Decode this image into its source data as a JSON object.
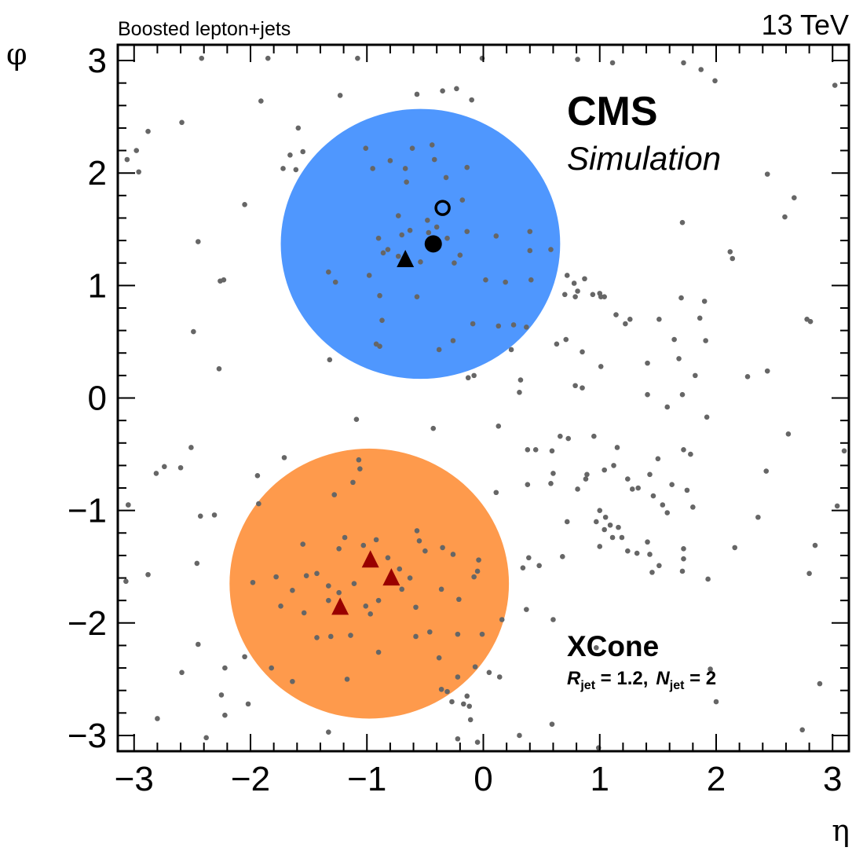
{
  "header": {
    "top_left": "Boosted lepton+jets",
    "top_right": "13 TeV"
  },
  "labels": {
    "cms": "CMS",
    "simulation": "Simulation",
    "algo": "XCone",
    "r_sym": "R",
    "jet_sub1": "jet",
    "r_val": " = 1.2,",
    "n_sym": "N",
    "jet_sub2": "jet",
    "n_val": " = 2"
  },
  "colors": {
    "jet1_fill": "#4f97fe",
    "jet2_fill": "#fe9a4c",
    "particle": "#666666",
    "marker": "#000000",
    "subjet_marker": "#990000"
  },
  "chart_data": {
    "type": "scatter",
    "title": "",
    "xlabel": "η",
    "ylabel": "φ",
    "xlim": [
      -3.14,
      3.14
    ],
    "ylim": [
      -3.14,
      3.14
    ],
    "xticks": [
      -3,
      -2,
      -1,
      0,
      1,
      2,
      3
    ],
    "yticks": [
      -3,
      -2,
      -1,
      0,
      1,
      2,
      3
    ],
    "xtick_labels": [
      "−3",
      "−2",
      "−1",
      "0",
      "1",
      "2",
      "3"
    ],
    "ytick_labels": [
      "−3",
      "−2",
      "−1",
      "0",
      "1",
      "2",
      "3"
    ],
    "jets": [
      {
        "eta_center": -0.54,
        "phi_center": 1.37,
        "radius": 1.2,
        "color": "#4f97fe"
      },
      {
        "eta_center": -0.98,
        "phi_center": -1.65,
        "radius": 1.2,
        "color": "#fe9a4c"
      }
    ],
    "markers": [
      {
        "eta": -0.43,
        "phi": 1.37,
        "symbol": "filled-circle",
        "color": "#000000"
      },
      {
        "eta": -0.35,
        "phi": 1.69,
        "symbol": "open-circle",
        "color": "#000000"
      },
      {
        "eta": -0.67,
        "phi": 1.24,
        "symbol": "triangle",
        "color": "#000000"
      },
      {
        "eta": -0.97,
        "phi": -1.43,
        "symbol": "triangle",
        "color": "#990000"
      },
      {
        "eta": -0.79,
        "phi": -1.59,
        "symbol": "triangle",
        "color": "#990000"
      },
      {
        "eta": -1.23,
        "phi": -1.85,
        "symbol": "triangle",
        "color": "#990000"
      }
    ],
    "particles": [
      [
        -2.42,
        3.02
      ],
      [
        -1.85,
        3.02
      ],
      [
        -1.08,
        3.02
      ],
      [
        -0.01,
        3.02
      ],
      [
        0.81,
        3.01
      ],
      [
        1.11,
        2.98
      ],
      [
        1.72,
        2.98
      ],
      [
        1.87,
        2.92
      ],
      [
        1.99,
        2.82
      ],
      [
        3.02,
        2.78
      ],
      [
        -0.35,
        2.73
      ],
      [
        -0.57,
        2.7
      ],
      [
        -1.23,
        2.69
      ],
      [
        -0.23,
        2.75
      ],
      [
        -0.1,
        2.65
      ],
      [
        -1.91,
        2.64
      ],
      [
        -2.59,
        2.45
      ],
      [
        -2.88,
        2.37
      ],
      [
        -1.59,
        2.4
      ],
      [
        -1.66,
        2.16
      ],
      [
        -2.98,
        2.2
      ],
      [
        -3.06,
        2.12
      ],
      [
        -2.96,
        2.01
      ],
      [
        -1.72,
        2.04
      ],
      [
        -1.61,
        2.03
      ],
      [
        -1.55,
        2.19
      ],
      [
        -0.61,
        2.22
      ],
      [
        -0.44,
        2.25
      ],
      [
        -0.42,
        2.12
      ],
      [
        -0.14,
        2.05
      ],
      [
        -0.18,
        1.76
      ],
      [
        -0.32,
        1.96
      ],
      [
        -0.8,
        2.11
      ],
      [
        -0.67,
        2.04
      ],
      [
        -0.66,
        1.92
      ],
      [
        -1.01,
        2.22
      ],
      [
        -0.95,
        2.04
      ],
      [
        2.44,
        1.99
      ],
      [
        2.67,
        1.78
      ],
      [
        2.59,
        1.61
      ],
      [
        -2.05,
        1.72
      ],
      [
        -0.73,
        1.62
      ],
      [
        -0.48,
        1.58
      ],
      [
        -0.47,
        1.47
      ],
      [
        -0.4,
        1.52
      ],
      [
        -0.31,
        1.42
      ],
      [
        -0.63,
        1.49
      ],
      [
        -0.7,
        1.45
      ],
      [
        -0.9,
        1.42
      ],
      [
        -0.14,
        1.48
      ],
      [
        0.11,
        1.44
      ],
      [
        0.4,
        1.48
      ],
      [
        0.4,
        1.31
      ],
      [
        1.71,
        1.56
      ],
      [
        2.14,
        1.24
      ],
      [
        2.12,
        1.3
      ],
      [
        -0.86,
        1.29
      ],
      [
        -0.73,
        1.26
      ],
      [
        -0.82,
        1.32
      ],
      [
        -0.54,
        1.21
      ],
      [
        -0.25,
        1.2
      ],
      [
        -0.2,
        1.27
      ],
      [
        0.58,
        1.32
      ],
      [
        -2.45,
        1.39
      ],
      [
        -2.23,
        1.05
      ],
      [
        -2.26,
        1.04
      ],
      [
        -1.33,
        1.12
      ],
      [
        -1.27,
        1.03
      ],
      [
        -0.98,
        1.09
      ],
      [
        0.02,
        1.05
      ],
      [
        0.19,
        1.03
      ],
      [
        0.41,
        1.05
      ],
      [
        0.72,
        1.09
      ],
      [
        0.78,
        1.02
      ],
      [
        0.87,
        1.06
      ],
      [
        0.81,
        0.95
      ],
      [
        0.94,
        0.92
      ],
      [
        1.0,
        0.93
      ],
      [
        0.79,
        0.9
      ],
      [
        0.7,
        0.92
      ],
      [
        1.01,
        0.9
      ],
      [
        1.04,
        0.9
      ],
      [
        1.7,
        0.89
      ],
      [
        1.9,
        0.86
      ],
      [
        -0.57,
        0.9
      ],
      [
        -0.89,
        0.91
      ],
      [
        1.14,
        0.74
      ],
      [
        1.26,
        0.7
      ],
      [
        1.22,
        0.66
      ],
      [
        1.51,
        0.7
      ],
      [
        1.86,
        0.71
      ],
      [
        2.78,
        0.7
      ],
      [
        2.81,
        0.68
      ],
      [
        -0.87,
        0.69
      ],
      [
        -0.09,
        0.66
      ],
      [
        0.13,
        0.64
      ],
      [
        0.26,
        0.65
      ],
      [
        0.37,
        0.63
      ],
      [
        0.63,
        0.48
      ],
      [
        0.71,
        0.52
      ],
      [
        1.64,
        0.52
      ],
      [
        1.91,
        0.51
      ],
      [
        -2.49,
        0.59
      ],
      [
        -0.26,
        0.51
      ],
      [
        -0.38,
        0.43
      ],
      [
        0.24,
        0.43
      ],
      [
        -0.89,
        0.46
      ],
      [
        -0.92,
        0.48
      ],
      [
        -1.32,
        0.34
      ],
      [
        0.85,
        0.41
      ],
      [
        1.01,
        0.28
      ],
      [
        1.41,
        0.31
      ],
      [
        1.68,
        0.35
      ],
      [
        1.82,
        0.2
      ],
      [
        2.44,
        0.24
      ],
      [
        2.27,
        0.19
      ],
      [
        -2.27,
        0.26
      ],
      [
        -0.08,
        0.2
      ],
      [
        -0.13,
        0.18
      ],
      [
        0.32,
        0.16
      ],
      [
        0.31,
        0.05
      ],
      [
        0.85,
        0.09
      ],
      [
        0.79,
        0.11
      ],
      [
        1.41,
        0.03
      ],
      [
        1.71,
        0.03
      ],
      [
        1.58,
        -0.08
      ],
      [
        1.92,
        -0.17
      ],
      [
        2.62,
        -0.32
      ],
      [
        3.1,
        -0.47
      ],
      [
        2.43,
        -0.65
      ],
      [
        -1.71,
        -0.53
      ],
      [
        -2.74,
        -0.61
      ],
      [
        -2.81,
        -0.67
      ],
      [
        -2.6,
        -0.62
      ],
      [
        -2.51,
        -0.44
      ],
      [
        -1.94,
        -0.69
      ],
      [
        -1.07,
        -0.55
      ],
      [
        -0.43,
        -0.27
      ],
      [
        -1.09,
        -0.19
      ],
      [
        0.13,
        -0.25
      ],
      [
        0.38,
        -0.46
      ],
      [
        0.45,
        -0.46
      ],
      [
        0.59,
        -0.47
      ],
      [
        0.6,
        -0.67
      ],
      [
        0.58,
        -0.76
      ],
      [
        0.81,
        -0.81
      ],
      [
        0.88,
        -0.72
      ],
      [
        0.89,
        -0.68
      ],
      [
        1.04,
        -0.64
      ],
      [
        1.12,
        -0.6
      ],
      [
        1.24,
        -0.72
      ],
      [
        1.28,
        -0.81
      ],
      [
        1.33,
        -0.8
      ],
      [
        1.43,
        -0.68
      ],
      [
        1.5,
        -0.54
      ],
      [
        1.72,
        -0.46
      ],
      [
        1.78,
        -0.5
      ],
      [
        0.66,
        -0.34
      ],
      [
        0.73,
        -0.36
      ],
      [
        0.95,
        -0.34
      ],
      [
        1.15,
        -0.44
      ],
      [
        1.46,
        -0.87
      ],
      [
        1.54,
        -0.95
      ],
      [
        1.58,
        -1.02
      ],
      [
        1.62,
        -0.77
      ],
      [
        1.75,
        -0.82
      ],
      [
        1.8,
        -0.97
      ],
      [
        2.36,
        -1.06
      ],
      [
        3.04,
        -0.96
      ],
      [
        0.11,
        -0.84
      ],
      [
        0.38,
        -0.77
      ],
      [
        -1.06,
        -0.63
      ],
      [
        -1.12,
        -0.75
      ],
      [
        -1.28,
        -0.86
      ],
      [
        -1.93,
        -0.94
      ],
      [
        -2.43,
        -1.05
      ],
      [
        -2.31,
        -1.04
      ],
      [
        -3.05,
        -0.95
      ],
      [
        -3.07,
        -1.63
      ],
      [
        -2.88,
        -1.57
      ],
      [
        -2.46,
        -1.47
      ],
      [
        -1.98,
        -1.64
      ],
      [
        -1.78,
        -1.59
      ],
      [
        -1.55,
        -1.3
      ],
      [
        -1.24,
        -1.34
      ],
      [
        -1.19,
        -1.24
      ],
      [
        -1.03,
        -1.31
      ],
      [
        -0.92,
        -1.26
      ],
      [
        -0.82,
        -1.42
      ],
      [
        -0.57,
        -1.18
      ],
      [
        -0.55,
        -1.27
      ],
      [
        -0.5,
        -1.36
      ],
      [
        -0.35,
        -1.33
      ],
      [
        -0.26,
        -1.39
      ],
      [
        -0.04,
        -1.44
      ],
      [
        -0.05,
        -1.54
      ],
      [
        0.39,
        -1.42
      ],
      [
        0.68,
        -1.41
      ],
      [
        0.97,
        -1.1
      ],
      [
        1.0,
        -1.0
      ],
      [
        1.05,
        -1.06
      ],
      [
        1.09,
        -1.13
      ],
      [
        1.16,
        -1.15
      ],
      [
        1.19,
        -1.24
      ],
      [
        1.11,
        -1.24
      ],
      [
        1.04,
        -1.17
      ],
      [
        1.0,
        -1.32
      ],
      [
        1.24,
        -1.36
      ],
      [
        1.32,
        -1.38
      ],
      [
        1.41,
        -1.28
      ],
      [
        1.43,
        -1.39
      ],
      [
        1.51,
        -1.49
      ],
      [
        1.72,
        -1.34
      ],
      [
        1.72,
        -1.43
      ],
      [
        1.71,
        -1.54
      ],
      [
        1.93,
        -1.61
      ],
      [
        2.16,
        -1.33
      ],
      [
        2.85,
        -1.31
      ],
      [
        2.8,
        -1.56
      ],
      [
        1.45,
        -1.55
      ],
      [
        0.72,
        -1.1
      ],
      [
        0.48,
        -1.49
      ],
      [
        0.34,
        -1.51
      ],
      [
        -1.64,
        -1.71
      ],
      [
        -1.52,
        -1.58
      ],
      [
        -1.43,
        -1.56
      ],
      [
        -1.33,
        -1.67
      ],
      [
        -1.33,
        -1.8
      ],
      [
        -1.24,
        -1.73
      ],
      [
        -1.11,
        -1.65
      ],
      [
        -1.01,
        -1.85
      ],
      [
        -0.9,
        -1.8
      ],
      [
        -0.72,
        -1.52
      ],
      [
        -0.7,
        -1.7
      ],
      [
        -0.63,
        -1.6
      ],
      [
        -0.58,
        -1.86
      ],
      [
        -0.36,
        -1.7
      ],
      [
        -0.21,
        -1.79
      ],
      [
        -0.08,
        -1.59
      ],
      [
        -1.74,
        -1.85
      ],
      [
        -1.54,
        -1.91
      ],
      [
        -1.43,
        -2.13
      ],
      [
        -1.31,
        -2.12
      ],
      [
        -1.14,
        -2.11
      ],
      [
        -0.97,
        -1.92
      ],
      [
        -0.9,
        -2.26
      ],
      [
        -0.58,
        -2.12
      ],
      [
        -0.46,
        -2.08
      ],
      [
        -0.22,
        -2.1
      ],
      [
        -0.01,
        -2.1
      ],
      [
        0.16,
        -1.97
      ],
      [
        0.37,
        -1.88
      ],
      [
        0.6,
        -1.97
      ],
      [
        0.97,
        -2.22
      ],
      [
        -0.38,
        -2.31
      ],
      [
        -2.22,
        -2.4
      ],
      [
        -2.05,
        -2.3
      ],
      [
        -2.45,
        -2.19
      ],
      [
        -2.59,
        -2.44
      ],
      [
        -1.82,
        -2.4
      ],
      [
        -1.64,
        -2.52
      ],
      [
        -1.17,
        -2.5
      ],
      [
        -0.22,
        -2.48
      ],
      [
        -0.07,
        -2.39
      ],
      [
        0.05,
        -2.44
      ],
      [
        0.14,
        -2.48
      ],
      [
        1.95,
        -2.41
      ],
      [
        2.89,
        -2.54
      ],
      [
        -2.8,
        -2.85
      ],
      [
        -2.25,
        -2.64
      ],
      [
        -2.22,
        -2.82
      ],
      [
        -2.38,
        -3.02
      ],
      [
        -1.33,
        -2.97
      ],
      [
        -0.27,
        -2.7
      ],
      [
        -0.17,
        -2.72
      ],
      [
        -0.12,
        -2.74
      ],
      [
        -0.11,
        -2.86
      ],
      [
        -0.22,
        -3.03
      ],
      [
        0.31,
        -3.0
      ],
      [
        0.59,
        -2.9
      ],
      [
        2.0,
        -2.7
      ],
      [
        2.74,
        -2.95
      ],
      [
        -2.02,
        -2.72
      ],
      [
        -0.31,
        -2.61
      ],
      [
        -0.05,
        -3.06
      ],
      [
        0.99,
        -3.11
      ],
      [
        -0.36,
        -2.59
      ],
      [
        -0.14,
        -2.65
      ],
      [
        -3.05,
        -0.95
      ]
    ]
  }
}
